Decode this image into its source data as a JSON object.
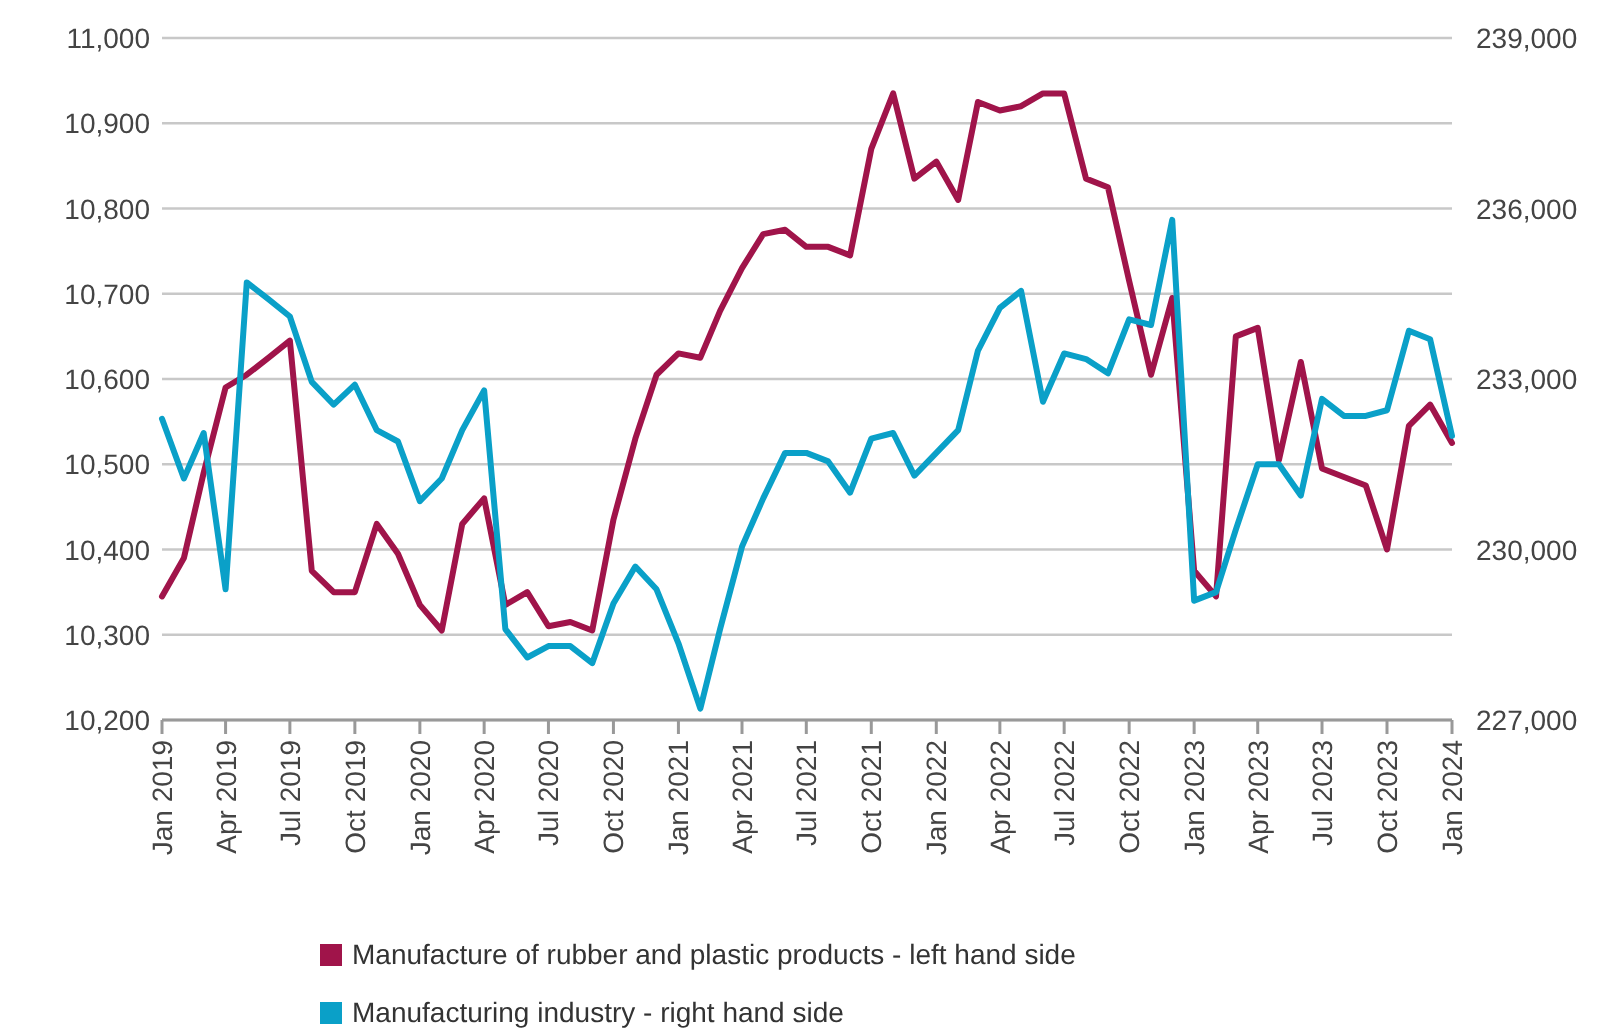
{
  "chart_data": {
    "type": "line",
    "x": [
      "2019-01",
      "2019-02",
      "2019-03",
      "2019-04",
      "2019-05",
      "2019-06",
      "2019-07",
      "2019-08",
      "2019-09",
      "2019-10",
      "2019-11",
      "2019-12",
      "2020-01",
      "2020-02",
      "2020-03",
      "2020-04",
      "2020-05",
      "2020-06",
      "2020-07",
      "2020-08",
      "2020-09",
      "2020-10",
      "2020-11",
      "2020-12",
      "2021-01",
      "2021-02",
      "2021-03",
      "2021-04",
      "2021-05",
      "2021-06",
      "2021-07",
      "2021-08",
      "2021-09",
      "2021-10",
      "2021-11",
      "2021-12",
      "2022-01",
      "2022-02",
      "2022-03",
      "2022-04",
      "2022-05",
      "2022-06",
      "2022-07",
      "2022-08",
      "2022-09",
      "2022-10",
      "2022-11",
      "2022-12",
      "2023-01",
      "2023-02",
      "2023-03",
      "2023-04",
      "2023-05",
      "2023-06",
      "2023-07",
      "2023-08",
      "2023-09",
      "2023-10",
      "2023-11",
      "2023-12",
      "2024-01"
    ],
    "series": [
      {
        "name": "Manufacture of rubber and plastic products - left hand side",
        "color": "#a0144a",
        "values": [
          10345,
          10390,
          10490,
          10590,
          10605,
          10625,
          10645,
          10375,
          10350,
          10350,
          10430,
          10395,
          10335,
          10305,
          10430,
          10460,
          10335,
          10350,
          10310,
          10315,
          10305,
          10435,
          10530,
          10605,
          10630,
          10625,
          10680,
          10730,
          10770,
          10775,
          10755,
          10755,
          10745,
          10870,
          10935,
          10835,
          10855,
          10810,
          10925,
          10915,
          10920,
          10935,
          10935,
          10835,
          10825,
          10715,
          10605,
          10695,
          10375,
          10345,
          10650,
          10660,
          10505,
          10620,
          10495,
          10485,
          10475,
          10400,
          10545,
          10570,
          10525
        ]
      },
      {
        "name": "Manufacturing industry - right hand side",
        "color": "#0aa0c8",
        "axis": "y2",
        "values": [
          232300,
          231250,
          232050,
          229300,
          234700,
          234400,
          234100,
          232950,
          232550,
          232900,
          232100,
          231900,
          230850,
          231250,
          232100,
          232800,
          228600,
          228100,
          228300,
          228300,
          228000,
          229050,
          229700,
          229300,
          228350,
          227200,
          228600,
          230050,
          230900,
          231700,
          231700,
          231550,
          231000,
          231950,
          232050,
          231300,
          231700,
          232100,
          233500,
          234250,
          234550,
          232600,
          233450,
          233350,
          233100,
          234050,
          233950,
          235800,
          229100,
          229250,
          230350,
          231500,
          231500,
          230950,
          232650,
          232350,
          232350,
          232450,
          233850,
          233700,
          232000
        ]
      }
    ],
    "xlim": [
      "2019-01",
      "2024-01"
    ],
    "xticks": [
      {
        "value": "2019-01",
        "label": "Jan 2019"
      },
      {
        "value": "2019-04",
        "label": "Apr 2019"
      },
      {
        "value": "2019-07",
        "label": "Jul 2019"
      },
      {
        "value": "2019-10",
        "label": "Oct 2019"
      },
      {
        "value": "2020-01",
        "label": "Jan 2020"
      },
      {
        "value": "2020-04",
        "label": "Apr 2020"
      },
      {
        "value": "2020-07",
        "label": "Jul 2020"
      },
      {
        "value": "2020-10",
        "label": "Oct 2020"
      },
      {
        "value": "2021-01",
        "label": "Jan 2021"
      },
      {
        "value": "2021-04",
        "label": "Apr 2021"
      },
      {
        "value": "2021-07",
        "label": "Jul 2021"
      },
      {
        "value": "2021-10",
        "label": "Oct 2021"
      },
      {
        "value": "2022-01",
        "label": "Jan 2022"
      },
      {
        "value": "2022-04",
        "label": "Apr 2022"
      },
      {
        "value": "2022-07",
        "label": "Jul 2022"
      },
      {
        "value": "2022-10",
        "label": "Oct 2022"
      },
      {
        "value": "2023-01",
        "label": "Jan 2023"
      },
      {
        "value": "2023-04",
        "label": "Apr 2023"
      },
      {
        "value": "2023-07",
        "label": "Jul 2023"
      },
      {
        "value": "2023-10",
        "label": "Oct 2023"
      },
      {
        "value": "2024-01",
        "label": "Jan 2024"
      }
    ],
    "ylim": [
      10200,
      11000
    ],
    "yticks": [
      {
        "value": 10200,
        "label": "10,200"
      },
      {
        "value": 10300,
        "label": "10,300"
      },
      {
        "value": 10400,
        "label": "10,400"
      },
      {
        "value": 10500,
        "label": "10,500"
      },
      {
        "value": 10600,
        "label": "10,600"
      },
      {
        "value": 10700,
        "label": "10,700"
      },
      {
        "value": 10800,
        "label": "10,800"
      },
      {
        "value": 10900,
        "label": "10,900"
      },
      {
        "value": 11000,
        "label": "11,000"
      }
    ],
    "y2lim": [
      227000,
      239000
    ],
    "y2ticks": [
      {
        "value": 227000,
        "label": "227,000"
      },
      {
        "value": 230000,
        "label": "230,000"
      },
      {
        "value": 233000,
        "label": "233,000"
      },
      {
        "value": 236000,
        "label": "236,000"
      },
      {
        "value": 239000,
        "label": "239,000"
      }
    ],
    "grid": "y",
    "legend": "bottom",
    "marker": "none",
    "line_style": "solid"
  }
}
